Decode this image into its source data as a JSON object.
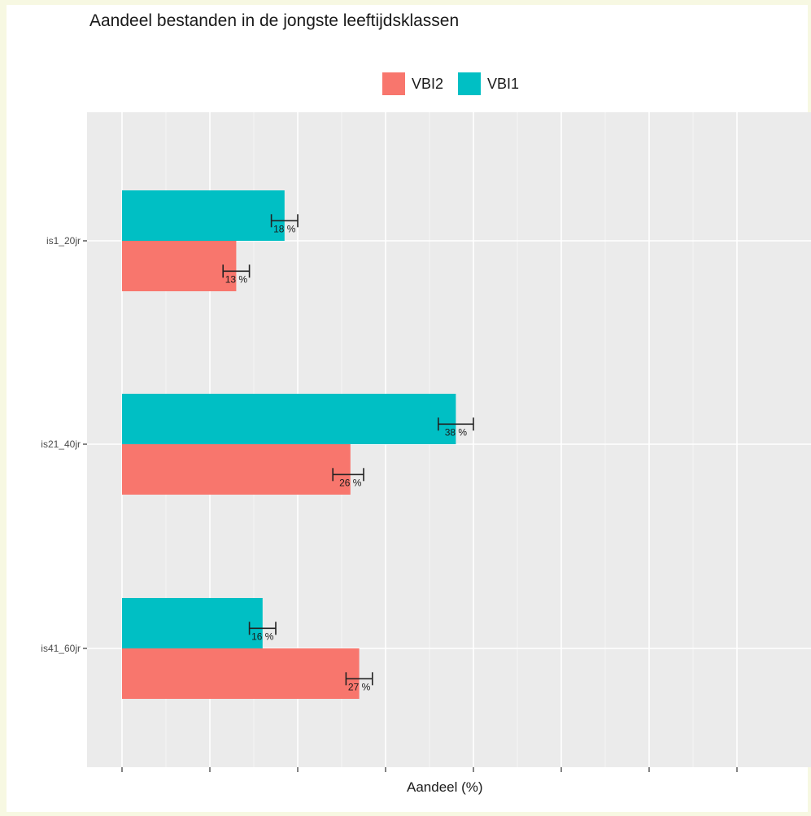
{
  "chart_data": {
    "type": "bar",
    "orientation": "horizontal",
    "title": "Aandeel bestanden in de jongste leeftijdsklassen",
    "xlabel": "Aandeel (%)",
    "ylabel": "",
    "categories": [
      "is1_20jr",
      "is21_40jr",
      "is41_60jr"
    ],
    "series": [
      {
        "name": "VBI1",
        "color": "#00BFC4",
        "values": [
          18.5,
          38,
          16
        ],
        "errors": [
          [
            17,
            20
          ],
          [
            36,
            40
          ],
          [
            14.5,
            17.5
          ]
        ],
        "labels": [
          "18 %",
          "38 %",
          "16 %"
        ]
      },
      {
        "name": "VBI2",
        "color": "#F8766D",
        "values": [
          13,
          26,
          27
        ],
        "errors": [
          [
            11.5,
            14.5
          ],
          [
            24,
            27.5
          ],
          [
            25.5,
            28.5
          ]
        ],
        "labels": [
          "13 %",
          "26 %",
          "27 %"
        ]
      }
    ],
    "legend_order": [
      "VBI2",
      "VBI1"
    ],
    "legend_position": "top",
    "xlim": [
      0,
      78
    ],
    "x_ticks": [
      0,
      10,
      20,
      30,
      40,
      50,
      60,
      70
    ],
    "x_tick_labels_visible": false,
    "grid": true,
    "panel_color": "#EBEBEB"
  }
}
